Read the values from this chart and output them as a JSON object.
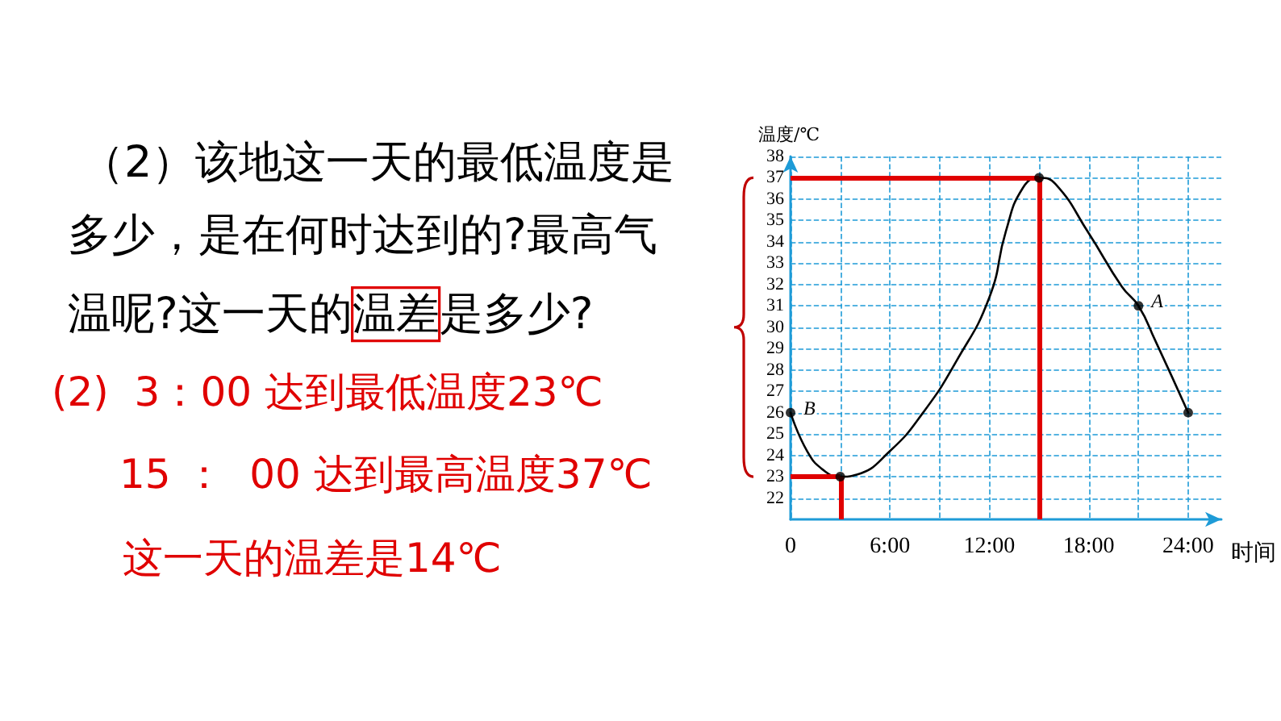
{
  "chart_data": {
    "type": "line",
    "xlabel": "时间",
    "ylabel": "温度/℃",
    "annotations": [
      "（2）该地这一天的最低温度是",
      "多少，是在何时达到的?最高气",
      "温呢?这一天的温差是多少?",
      "(2)  3：00 达到最低温度23℃",
      "15 ：  00 达到最高温度37℃",
      "这一天的温差是14℃",
      {
        "text": "A",
        "x": 21,
        "y": 31
      },
      {
        "text": "B",
        "x": 0,
        "y": 26
      }
    ],
    "series": [
      {
        "color": "#000000",
        "marker": "none",
        "x": [
          0,
          1,
          2,
          3,
          4,
          6,
          8,
          10,
          12,
          13,
          14,
          15,
          16,
          18,
          20,
          21,
          22,
          24
        ],
        "values": [
          26,
          24.2,
          23.3,
          23,
          23.1,
          24.2,
          26,
          28.4,
          31.4,
          34.5,
          36.5,
          37,
          36.7,
          34.4,
          31.9,
          31,
          29.4,
          26
        ]
      },
      {
        "type": "scatter",
        "color": "#000000",
        "marker": "circle",
        "x": [
          0,
          3,
          15,
          21,
          24
        ],
        "values": [
          26,
          23,
          37,
          31,
          26
        ]
      }
    ],
    "xlim": [
      0,
      26
    ],
    "xticks": [
      {
        "value": 0,
        "label": "0"
      },
      {
        "value": 3,
        "label": null
      },
      {
        "value": 6,
        "label": "6:00"
      },
      {
        "value": 9,
        "label": null
      },
      {
        "value": 12,
        "label": "12:00"
      },
      {
        "value": 15,
        "label": null
      },
      {
        "value": 18,
        "label": "18:00"
      },
      {
        "value": 21,
        "label": null
      },
      {
        "value": 24,
        "label": "24:00"
      }
    ],
    "ylim": [
      21,
      38
    ],
    "yticks": [
      22,
      23,
      24,
      25,
      26,
      27,
      28,
      29,
      30,
      31,
      32,
      33,
      34,
      35,
      36,
      37,
      38
    ],
    "grid": true,
    "ref_lines": [
      {
        "axis": "y",
        "value": 23,
        "color": "#e00000"
      },
      {
        "axis": "x",
        "value": 3,
        "color": "#e00000"
      },
      {
        "axis": "y",
        "value": 37,
        "color": "#e00000"
      },
      {
        "axis": "x",
        "value": 15,
        "color": "#e00000"
      }
    ]
  }
}
